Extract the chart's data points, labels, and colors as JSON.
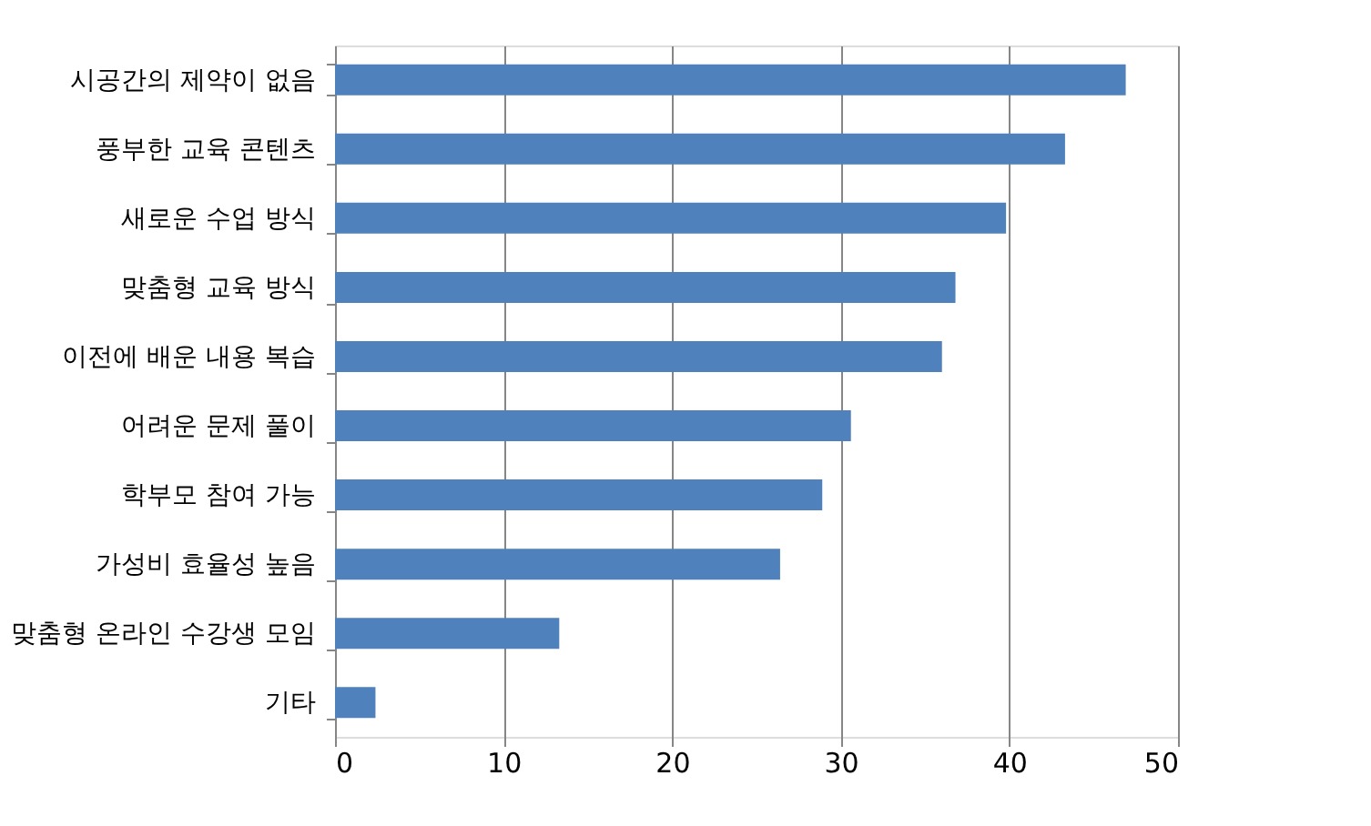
{
  "chart_data": {
    "type": "bar",
    "orientation": "horizontal",
    "categories": [
      "시공간의 제약이 없음",
      "풍부한 교육 콘텐츠",
      "새로운 수업 방식",
      "맞춤형 교육 방식",
      "이전에 배운 내용 복습 ",
      "어려운 문제 풀이",
      "학부모 참여 가능",
      "가성비 효율성 높음",
      "맞춤형 온라인 수강생 모임",
      "기타"
    ],
    "values": [
      46.9,
      43.3,
      39.8,
      36.8,
      36.0,
      30.6,
      28.9,
      26.4,
      13.3,
      2.4
    ],
    "color": "#4f81bd",
    "xlim": [
      0,
      50
    ],
    "xticks": [
      0,
      10,
      20,
      30,
      40,
      50
    ],
    "grid": "x"
  }
}
